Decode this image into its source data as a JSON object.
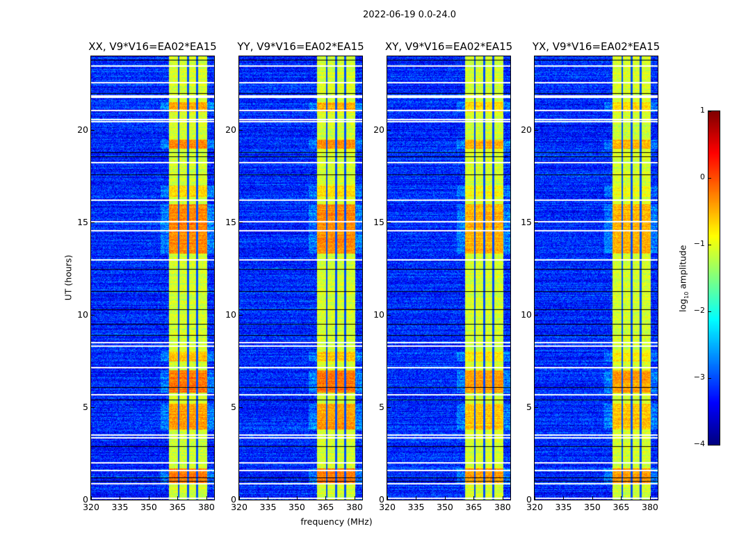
{
  "figure": {
    "suptitle": "2022-06-19 0.0-24.0",
    "xlabel": "frequency (MHz)",
    "ylabel": "UT (hours)",
    "colorbar_label_prefix": "log",
    "colorbar_label_sub": "10",
    "colorbar_label_suffix": " amplitude"
  },
  "chart_data": {
    "type": "heatmap",
    "colormap": "jet",
    "clim": [
      -4,
      1
    ],
    "colorbar_ticks": [
      "1",
      "0",
      "−1",
      "−2",
      "−3",
      "−4"
    ],
    "colorbar_tick_values": [
      1,
      0,
      -1,
      -2,
      -3,
      -4
    ],
    "xlim": [
      320,
      384
    ],
    "ylim": [
      0,
      24
    ],
    "xticks": [
      320,
      335,
      350,
      365,
      380
    ],
    "xtick_labels": [
      "320",
      "335",
      "350",
      "365",
      "380"
    ],
    "yticks": [
      0,
      5,
      10,
      15,
      20
    ],
    "ytick_labels": [
      "0",
      "5",
      "10",
      "15",
      "20"
    ],
    "panels": [
      {
        "title": "XX, V9*V16=EA02*EA15",
        "show_ylabel": true
      },
      {
        "title": "YY, V9*V16=EA02*EA15",
        "show_ylabel": false
      },
      {
        "title": "XY, V9*V16=EA02*EA15",
        "show_ylabel": false
      },
      {
        "title": "YX, V9*V16=EA02*EA15",
        "show_ylabel": false
      }
    ],
    "background_level": -3.2,
    "band_mhz": [
      360.4,
      380.3
    ],
    "band_level": -1.1,
    "band_channel_gaps_mhz": [
      365.5,
      370.5,
      375.2
    ],
    "strong_intervals_hours": [
      [
        0.9,
        1.7,
        -0.2
      ],
      [
        3.8,
        5.2,
        -0.4
      ],
      [
        5.8,
        7.0,
        -0.2
      ],
      [
        7.5,
        8.0,
        -0.6
      ],
      [
        13.3,
        16.0,
        -0.3
      ],
      [
        19.0,
        19.5,
        -0.3
      ],
      [
        21.0,
        21.5,
        -0.5
      ],
      [
        16.4,
        17.0,
        -0.7
      ]
    ],
    "flagged_hours_white": [
      23.5,
      22.6,
      21.9,
      21.8,
      21.1,
      20.6,
      20.5,
      18.3,
      16.25,
      15.1,
      14.6,
      13.0,
      8.55,
      8.35,
      7.2,
      5.7,
      3.55,
      3.4,
      2.05,
      1.6,
      0.9,
      0.1
    ],
    "flagged_hours_black": [
      23.8,
      22.0,
      18.8,
      18.6,
      17.6,
      12.5,
      11.3,
      10.3,
      9.5,
      8.9,
      6.1,
      5.4,
      2.9,
      1.2,
      1.0
    ]
  }
}
